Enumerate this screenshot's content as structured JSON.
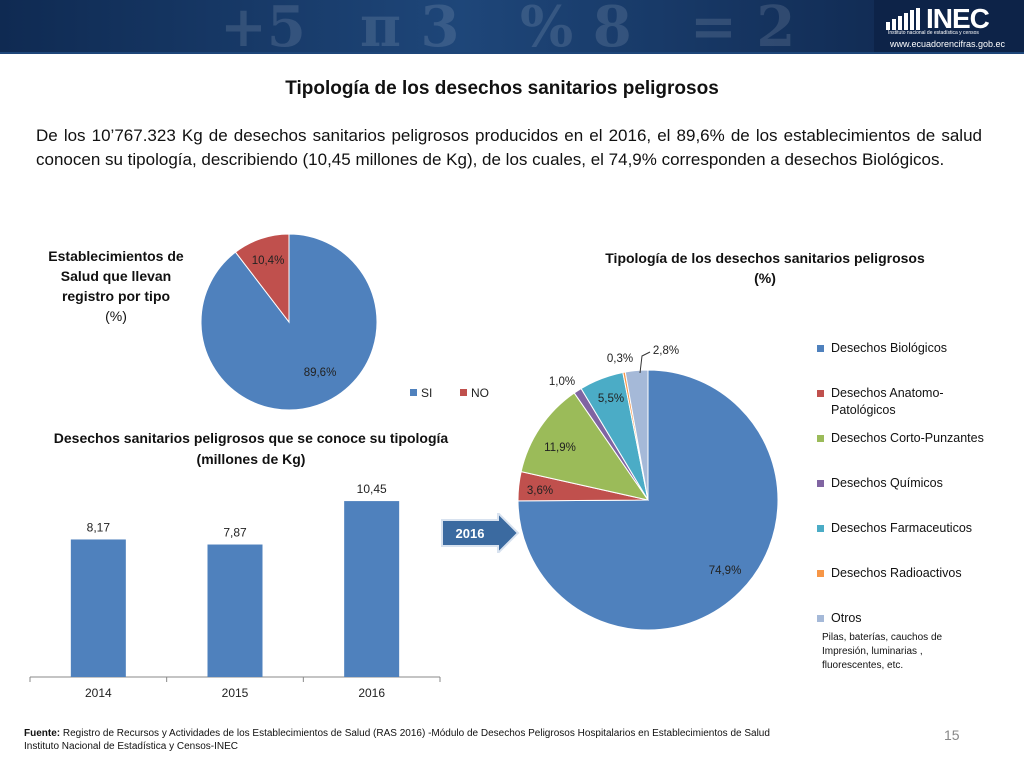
{
  "header": {
    "logo_text": "INEC",
    "logo_subtitle": "Instituto nacional de estadística y censos",
    "logo_url": "www.ecuadorencifras.gob.ec"
  },
  "title": "Tipología de los desechos sanitarios peligrosos",
  "intro": "De los 10’767.323 Kg de desechos sanitarios peligrosos producidos en el 2016, el 89,6% de los establecimientos de salud conocen su tipología, describiendo (10,45 millones de Kg), de los cuales, el 74,9% corresponden a desechos Biológicos.",
  "arrow_label": "2016",
  "colors": {
    "blue": "#4f81bd",
    "red": "#c0504d",
    "green": "#9bbb59",
    "purple": "#8064a2",
    "teal": "#4bacc6",
    "orange": "#f79646",
    "lightblue": "#a5b9d8",
    "banner": "#1e4679"
  },
  "chart_data": [
    {
      "type": "pie",
      "title": "Establecimientos de Salud que llevan registro por tipo",
      "unit": "(%)",
      "slices": [
        {
          "name": "SI",
          "value": 89.6,
          "label": "89,6%",
          "color": "#4f81bd"
        },
        {
          "name": "NO",
          "value": 10.4,
          "label": "10,4%",
          "color": "#c0504d"
        }
      ],
      "legend": [
        "SI",
        "NO"
      ],
      "legend_position": "bottom"
    },
    {
      "type": "bar",
      "title": "Desechos sanitarios peligrosos que se conoce su tipología (millones de Kg)",
      "categories": [
        "2014",
        "2015",
        "2016"
      ],
      "values": [
        8.17,
        7.87,
        10.45
      ],
      "value_labels": [
        "8,17",
        "7,87",
        "10,45"
      ],
      "ylim": [
        0,
        12
      ],
      "color": "#4f81bd",
      "grid": false
    },
    {
      "type": "pie",
      "title": "Tipología de los desechos sanitarios peligrosos",
      "unit": "(%)",
      "slices": [
        {
          "name": "Desechos Biológicos",
          "value": 74.9,
          "label": "74,9%",
          "color": "#4f81bd"
        },
        {
          "name": "Desechos Anatomo-Patológicos",
          "value": 3.6,
          "label": "3,6%",
          "color": "#c0504d"
        },
        {
          "name": "Desechos Corto-Punzantes",
          "value": 11.9,
          "label": "11,9%",
          "color": "#9bbb59"
        },
        {
          "name": "Desechos Químicos",
          "value": 1.0,
          "label": "1,0%",
          "color": "#8064a2"
        },
        {
          "name": "Desechos Farmaceuticos",
          "value": 5.5,
          "label": "5,5%",
          "color": "#4bacc6"
        },
        {
          "name": "Desechos Radioactivos",
          "value": 0.3,
          "label": "0,3%",
          "color": "#f79646"
        },
        {
          "name": "Otros",
          "value": 2.8,
          "label": "2,8%",
          "color": "#a5b9d8"
        }
      ],
      "legend_position": "right",
      "others_note": "Pilas, baterías, cauchos de Impresión, luminarias , fluorescentes, etc."
    }
  ],
  "footer": {
    "source_label": "Fuente:",
    "source_text": " Registro de Recursos y Actividades de los Establecimientos de Salud (RAS 2016) -Módulo de Desechos Peligrosos Hospitalarios en Establecimientos de Salud",
    "institution": "Instituto Nacional de Estadística y Censos-INEC",
    "page_number": "15"
  }
}
